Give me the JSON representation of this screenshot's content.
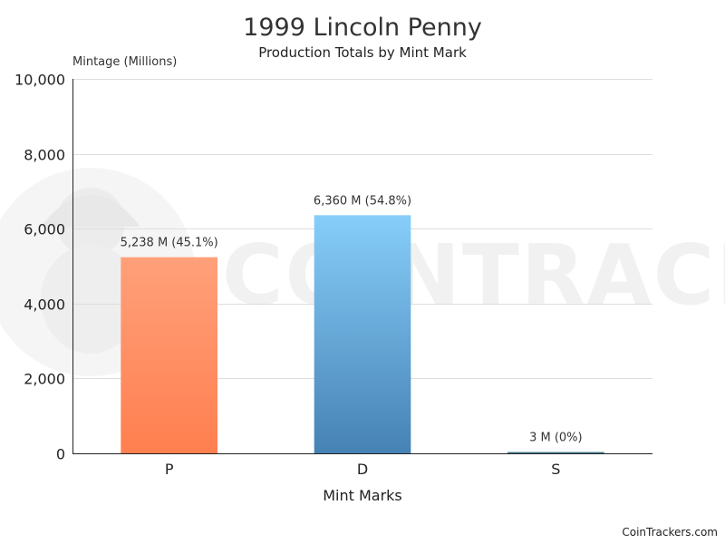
{
  "page": {
    "title": "1999 Lincoln Penny",
    "subtitle": "Production Totals by Mint Mark",
    "credit": "CoinTrackers.com",
    "watermark": "COINTRACKERS"
  },
  "chart_data": {
    "type": "bar",
    "title": "1999 Lincoln Penny",
    "subtitle": "Production Totals by Mint Mark",
    "xlabel": "Mint Marks",
    "ylabel": "Mintage (Millions)",
    "ylim": [
      0,
      10000
    ],
    "yticks": [
      0,
      2000,
      4000,
      6000,
      8000,
      10000
    ],
    "ytick_labels": [
      "0",
      "2,000",
      "4,000",
      "6,000",
      "8,000",
      "10,000"
    ],
    "grid": true,
    "categories": [
      "P",
      "D",
      "S"
    ],
    "values": [
      5238,
      6360,
      3
    ],
    "data_labels": [
      "5,238 M (45.1%)",
      "6,360 M (54.8%)",
      "3 M (0%)"
    ],
    "colors": {
      "P": {
        "top": "#ffa07a",
        "bottom": "#ff7f4f"
      },
      "D": {
        "top": "#87cefa",
        "bottom": "#4682b4"
      },
      "S": {
        "top": "#5f8f9f",
        "bottom": "#2e6f80"
      }
    },
    "axis_color": "#222222",
    "grid_color": "#dddddd"
  }
}
